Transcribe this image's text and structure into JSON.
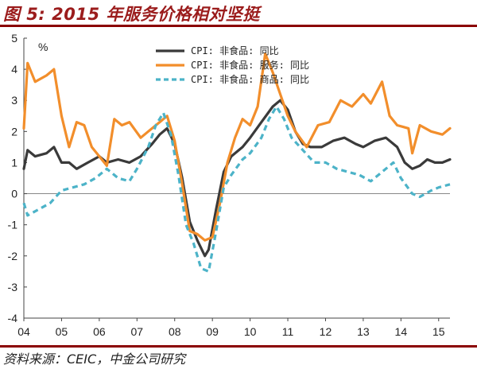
{
  "title": "图 5: 2015 年服务价格相对坚挺",
  "source": "资料来源：CEIC，中金公司研究",
  "colors": {
    "accent": "#8b0000"
  },
  "chart_data": {
    "type": "line",
    "ylabel": "%",
    "ylim": [
      -4,
      5
    ],
    "yticks": [
      "5",
      "4",
      "3",
      "2",
      "1",
      "0",
      "-1",
      "-2",
      "-3",
      "-4"
    ],
    "xticks": [
      "04",
      "05",
      "06",
      "07",
      "08",
      "09",
      "10",
      "11",
      "12",
      "13",
      "14",
      "15"
    ],
    "xlim": [
      2004.0,
      2015.3
    ],
    "series": [
      {
        "name": "CPI: 非食品: 同比",
        "color": "#3a3a3a",
        "dash": "",
        "points": [
          [
            2004.0,
            0.8
          ],
          [
            2004.1,
            1.4
          ],
          [
            2004.3,
            1.2
          ],
          [
            2004.6,
            1.3
          ],
          [
            2004.8,
            1.5
          ],
          [
            2005.0,
            1.0
          ],
          [
            2005.2,
            1.0
          ],
          [
            2005.4,
            0.8
          ],
          [
            2005.7,
            1.0
          ],
          [
            2006.0,
            1.2
          ],
          [
            2006.2,
            1.0
          ],
          [
            2006.5,
            1.1
          ],
          [
            2006.8,
            1.0
          ],
          [
            2007.1,
            1.2
          ],
          [
            2007.4,
            1.6
          ],
          [
            2007.6,
            1.9
          ],
          [
            2007.8,
            2.1
          ],
          [
            2008.0,
            1.6
          ],
          [
            2008.2,
            0.5
          ],
          [
            2008.4,
            -0.9
          ],
          [
            2008.6,
            -1.5
          ],
          [
            2008.8,
            -2.0
          ],
          [
            2008.9,
            -1.8
          ],
          [
            2009.1,
            -0.5
          ],
          [
            2009.3,
            0.7
          ],
          [
            2009.5,
            1.2
          ],
          [
            2009.8,
            1.5
          ],
          [
            2010.0,
            1.8
          ],
          [
            2010.3,
            2.3
          ],
          [
            2010.6,
            2.8
          ],
          [
            2010.8,
            3.0
          ],
          [
            2011.0,
            2.7
          ],
          [
            2011.2,
            2.0
          ],
          [
            2011.4,
            1.6
          ],
          [
            2011.6,
            1.5
          ],
          [
            2011.9,
            1.5
          ],
          [
            2012.2,
            1.7
          ],
          [
            2012.5,
            1.8
          ],
          [
            2012.8,
            1.6
          ],
          [
            2013.0,
            1.5
          ],
          [
            2013.3,
            1.7
          ],
          [
            2013.6,
            1.8
          ],
          [
            2013.9,
            1.5
          ],
          [
            2014.1,
            1.0
          ],
          [
            2014.3,
            0.8
          ],
          [
            2014.5,
            0.9
          ],
          [
            2014.7,
            1.1
          ],
          [
            2014.9,
            1.0
          ],
          [
            2015.1,
            1.0
          ],
          [
            2015.3,
            1.1
          ]
        ]
      },
      {
        "name": "CPI: 非食品: 服务: 同比",
        "color": "#f28e2b",
        "dash": "",
        "points": [
          [
            2004.0,
            2.1
          ],
          [
            2004.1,
            4.2
          ],
          [
            2004.3,
            3.6
          ],
          [
            2004.6,
            3.8
          ],
          [
            2004.8,
            4.0
          ],
          [
            2005.0,
            2.5
          ],
          [
            2005.2,
            1.5
          ],
          [
            2005.4,
            2.3
          ],
          [
            2005.6,
            2.2
          ],
          [
            2005.8,
            1.5
          ],
          [
            2006.0,
            1.2
          ],
          [
            2006.2,
            0.9
          ],
          [
            2006.4,
            2.4
          ],
          [
            2006.6,
            2.2
          ],
          [
            2006.8,
            2.3
          ],
          [
            2007.1,
            1.8
          ],
          [
            2007.3,
            2.0
          ],
          [
            2007.6,
            2.3
          ],
          [
            2007.8,
            2.5
          ],
          [
            2008.0,
            1.7
          ],
          [
            2008.2,
            0.3
          ],
          [
            2008.4,
            -1.2
          ],
          [
            2008.6,
            -1.3
          ],
          [
            2008.8,
            -1.5
          ],
          [
            2009.0,
            -1.4
          ],
          [
            2009.2,
            -0.3
          ],
          [
            2009.4,
            1.0
          ],
          [
            2009.6,
            1.8
          ],
          [
            2009.8,
            2.4
          ],
          [
            2010.0,
            2.2
          ],
          [
            2010.2,
            2.8
          ],
          [
            2010.4,
            4.5
          ],
          [
            2010.6,
            3.9
          ],
          [
            2010.8,
            3.2
          ],
          [
            2011.0,
            2.5
          ],
          [
            2011.2,
            2.0
          ],
          [
            2011.5,
            1.5
          ],
          [
            2011.8,
            2.2
          ],
          [
            2012.1,
            2.3
          ],
          [
            2012.4,
            3.0
          ],
          [
            2012.7,
            2.8
          ],
          [
            2013.0,
            3.2
          ],
          [
            2013.2,
            2.9
          ],
          [
            2013.5,
            3.6
          ],
          [
            2013.7,
            2.5
          ],
          [
            2013.9,
            2.2
          ],
          [
            2014.2,
            2.1
          ],
          [
            2014.3,
            1.3
          ],
          [
            2014.5,
            2.2
          ],
          [
            2014.8,
            2.0
          ],
          [
            2015.1,
            1.9
          ],
          [
            2015.3,
            2.1
          ]
        ]
      },
      {
        "name": "CPI: 非食品: 商品: 同比",
        "color": "#4cb3c8",
        "dash": "7,5",
        "points": [
          [
            2004.0,
            -0.3
          ],
          [
            2004.1,
            -0.7
          ],
          [
            2004.4,
            -0.5
          ],
          [
            2004.7,
            -0.3
          ],
          [
            2005.0,
            0.1
          ],
          [
            2005.3,
            0.2
          ],
          [
            2005.6,
            0.3
          ],
          [
            2005.9,
            0.5
          ],
          [
            2006.2,
            0.8
          ],
          [
            2006.5,
            0.5
          ],
          [
            2006.8,
            0.4
          ],
          [
            2007.0,
            0.8
          ],
          [
            2007.3,
            1.5
          ],
          [
            2007.5,
            2.2
          ],
          [
            2007.7,
            2.6
          ],
          [
            2007.9,
            1.9
          ],
          [
            2008.1,
            0.6
          ],
          [
            2008.3,
            -1.0
          ],
          [
            2008.5,
            -1.6
          ],
          [
            2008.7,
            -2.4
          ],
          [
            2008.9,
            -2.5
          ],
          [
            2009.1,
            -1.2
          ],
          [
            2009.3,
            0.2
          ],
          [
            2009.5,
            0.6
          ],
          [
            2009.8,
            1.1
          ],
          [
            2010.0,
            1.3
          ],
          [
            2010.3,
            1.8
          ],
          [
            2010.5,
            2.4
          ],
          [
            2010.7,
            2.8
          ],
          [
            2010.9,
            2.4
          ],
          [
            2011.1,
            1.8
          ],
          [
            2011.4,
            1.4
          ],
          [
            2011.7,
            1.0
          ],
          [
            2012.0,
            1.0
          ],
          [
            2012.3,
            0.8
          ],
          [
            2012.6,
            0.7
          ],
          [
            2012.9,
            0.6
          ],
          [
            2013.2,
            0.4
          ],
          [
            2013.5,
            0.7
          ],
          [
            2013.8,
            1.0
          ],
          [
            2014.0,
            0.5
          ],
          [
            2014.3,
            0.0
          ],
          [
            2014.5,
            -0.1
          ],
          [
            2014.8,
            0.1
          ],
          [
            2015.0,
            0.2
          ],
          [
            2015.3,
            0.3
          ]
        ]
      }
    ]
  }
}
